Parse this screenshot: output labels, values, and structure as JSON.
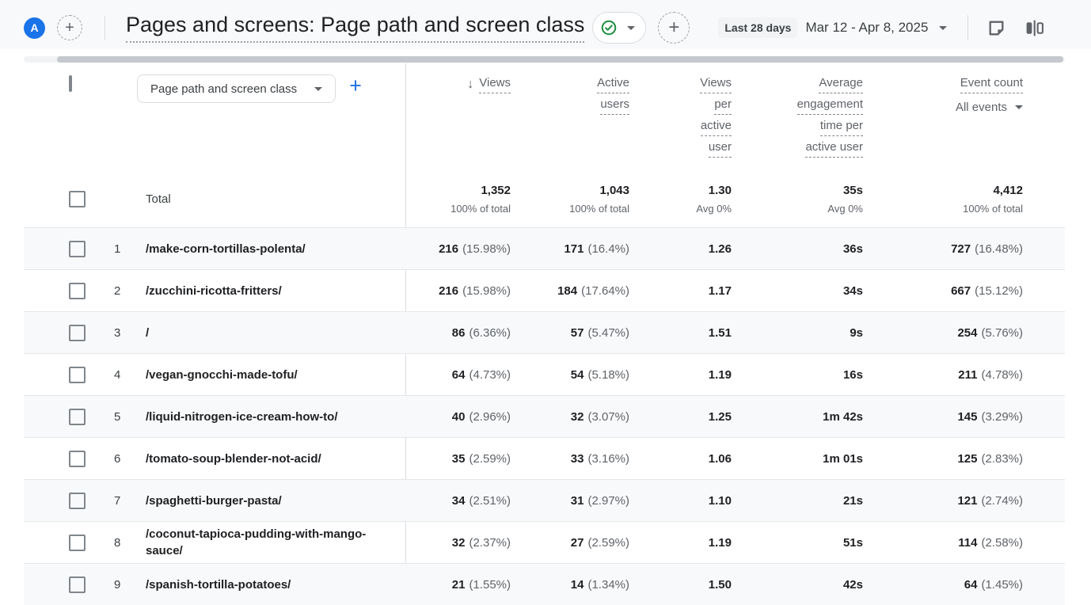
{
  "colors": {
    "accent_blue": "#1a73e8",
    "success_green": "#1e8e3e"
  },
  "header": {
    "avatar_letter": "A",
    "title": "Pages and screens: Page path and screen class",
    "date_preset": "Last 28 days",
    "date_range": "Mar 12 - Apr 8, 2025",
    "icons": [
      "plus-icon",
      "check-status-icon",
      "plus-icon",
      "note-icon",
      "comparison-icon"
    ]
  },
  "table": {
    "dimension_dropdown": "Page path and screen class",
    "columns": [
      {
        "lines": [
          "Views"
        ],
        "sorted": true
      },
      {
        "lines": [
          "Active",
          "users"
        ]
      },
      {
        "lines": [
          "Views",
          "per",
          "active",
          "user"
        ]
      },
      {
        "lines": [
          "Average",
          "engagement",
          "time per",
          "active user"
        ]
      },
      {
        "lines": [
          "Event count"
        ],
        "filter": "All events"
      }
    ],
    "total_label": "Total",
    "total": [
      {
        "main": "1,352",
        "sub": "100% of total"
      },
      {
        "main": "1,043",
        "sub": "100% of total"
      },
      {
        "main": "1.30",
        "sub": "Avg 0%"
      },
      {
        "main": "35s",
        "sub": "Avg 0%"
      },
      {
        "main": "4,412",
        "sub": "100% of total"
      }
    ],
    "rows": [
      {
        "num": "1",
        "path": "/make-corn-tortillas-polenta/",
        "metrics": [
          {
            "v": "216",
            "p": "(15.98%)"
          },
          {
            "v": "171",
            "p": "(16.4%)"
          },
          {
            "v": "1.26",
            "p": ""
          },
          {
            "v": "36s",
            "p": ""
          },
          {
            "v": "727",
            "p": "(16.48%)"
          }
        ]
      },
      {
        "num": "2",
        "path": "/zucchini-ricotta-fritters/",
        "metrics": [
          {
            "v": "216",
            "p": "(15.98%)"
          },
          {
            "v": "184",
            "p": "(17.64%)"
          },
          {
            "v": "1.17",
            "p": ""
          },
          {
            "v": "34s",
            "p": ""
          },
          {
            "v": "667",
            "p": "(15.12%)"
          }
        ]
      },
      {
        "num": "3",
        "path": "/",
        "metrics": [
          {
            "v": "86",
            "p": "(6.36%)"
          },
          {
            "v": "57",
            "p": "(5.47%)"
          },
          {
            "v": "1.51",
            "p": ""
          },
          {
            "v": "9s",
            "p": ""
          },
          {
            "v": "254",
            "p": "(5.76%)"
          }
        ]
      },
      {
        "num": "4",
        "path": "/vegan-gnocchi-made-tofu/",
        "metrics": [
          {
            "v": "64",
            "p": "(4.73%)"
          },
          {
            "v": "54",
            "p": "(5.18%)"
          },
          {
            "v": "1.19",
            "p": ""
          },
          {
            "v": "16s",
            "p": ""
          },
          {
            "v": "211",
            "p": "(4.78%)"
          }
        ]
      },
      {
        "num": "5",
        "path": "/liquid-nitrogen-ice-cream-how-to/",
        "metrics": [
          {
            "v": "40",
            "p": "(2.96%)"
          },
          {
            "v": "32",
            "p": "(3.07%)"
          },
          {
            "v": "1.25",
            "p": ""
          },
          {
            "v": "1m 42s",
            "p": ""
          },
          {
            "v": "145",
            "p": "(3.29%)"
          }
        ]
      },
      {
        "num": "6",
        "path": "/tomato-soup-blender-not-acid/",
        "metrics": [
          {
            "v": "35",
            "p": "(2.59%)"
          },
          {
            "v": "33",
            "p": "(3.16%)"
          },
          {
            "v": "1.06",
            "p": ""
          },
          {
            "v": "1m 01s",
            "p": ""
          },
          {
            "v": "125",
            "p": "(2.83%)"
          }
        ]
      },
      {
        "num": "7",
        "path": "/spaghetti-burger-pasta/",
        "metrics": [
          {
            "v": "34",
            "p": "(2.51%)"
          },
          {
            "v": "31",
            "p": "(2.97%)"
          },
          {
            "v": "1.10",
            "p": ""
          },
          {
            "v": "21s",
            "p": ""
          },
          {
            "v": "121",
            "p": "(2.74%)"
          }
        ]
      },
      {
        "num": "8",
        "path": "/coconut-tapioca-pudding-with-mango-sauce/",
        "metrics": [
          {
            "v": "32",
            "p": "(2.37%)"
          },
          {
            "v": "27",
            "p": "(2.59%)"
          },
          {
            "v": "1.19",
            "p": ""
          },
          {
            "v": "51s",
            "p": ""
          },
          {
            "v": "114",
            "p": "(2.58%)"
          }
        ]
      },
      {
        "num": "9",
        "path": "/spanish-tortilla-potatoes/",
        "metrics": [
          {
            "v": "21",
            "p": "(1.55%)"
          },
          {
            "v": "14",
            "p": "(1.34%)"
          },
          {
            "v": "1.50",
            "p": ""
          },
          {
            "v": "42s",
            "p": ""
          },
          {
            "v": "64",
            "p": "(1.45%)"
          }
        ]
      }
    ]
  }
}
